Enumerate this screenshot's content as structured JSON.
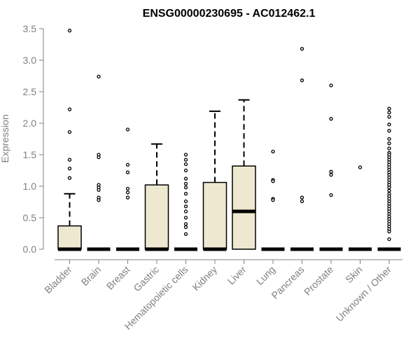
{
  "chart_data": {
    "type": "box",
    "title": "ENSG00000230695 - AC012462.1",
    "xlabel": "",
    "ylabel": "Expression",
    "ylim": [
      0,
      3.5
    ],
    "yticks": [
      0.0,
      0.5,
      1.0,
      1.5,
      2.0,
      2.5,
      3.0,
      3.5
    ],
    "ytick_labels": [
      "0.0",
      "0.5",
      "1.0",
      "1.5",
      "2.0",
      "2.5",
      "3.0",
      "3.5"
    ],
    "box_fill": "#ede8cf",
    "categories": [
      "Bladder",
      "Brain",
      "Breast",
      "Gastric",
      "Hematopoietic cells",
      "Kidney",
      "Liver",
      "Lung",
      "Pancreas",
      "Prostate",
      "Skin",
      "Unknown / Other"
    ],
    "boxes": [
      {
        "category": "Bladder",
        "min": 0,
        "q1": 0,
        "median": 0,
        "q3": 0.37,
        "max": 0.88,
        "outliers": [
          3.47,
          2.22,
          1.86,
          1.42,
          1.28,
          1.13
        ]
      },
      {
        "category": "Brain",
        "min": 0,
        "q1": 0,
        "median": 0,
        "q3": 0,
        "max": 0,
        "outliers": [
          2.74,
          1.5,
          1.46,
          1.02,
          0.98,
          0.94,
          0.82,
          0.78
        ]
      },
      {
        "category": "Breast",
        "min": 0,
        "q1": 0,
        "median": 0,
        "q3": 0,
        "max": 0,
        "outliers": [
          1.9,
          1.34,
          1.22,
          0.96,
          0.9,
          0.82
        ]
      },
      {
        "category": "Gastric",
        "min": 0,
        "q1": 0,
        "median": 0,
        "q3": 1.02,
        "max": 1.67,
        "outliers": []
      },
      {
        "category": "Hematopoietic cells",
        "min": 0,
        "q1": 0,
        "median": 0,
        "q3": 0,
        "max": 0,
        "outliers": [
          1.5,
          1.42,
          1.35,
          1.25,
          1.12,
          1.04,
          0.98,
          0.88,
          0.76,
          0.68,
          0.6,
          0.5,
          0.4,
          0.35,
          0.24
        ]
      },
      {
        "category": "Kidney",
        "min": 0,
        "q1": 0,
        "median": 0,
        "q3": 1.06,
        "max": 2.19,
        "outliers": []
      },
      {
        "category": "Liver",
        "min": 0,
        "q1": 0,
        "median": 0.6,
        "q3": 1.32,
        "max": 2.37,
        "outliers": []
      },
      {
        "category": "Lung",
        "min": 0,
        "q1": 0,
        "median": 0,
        "q3": 0,
        "max": 0,
        "outliers": [
          1.55,
          1.1,
          1.08,
          0.8,
          0.78
        ]
      },
      {
        "category": "Pancreas",
        "min": 0,
        "q1": 0,
        "median": 0,
        "q3": 0,
        "max": 0,
        "outliers": [
          3.18,
          2.68,
          0.82,
          0.76
        ]
      },
      {
        "category": "Prostate",
        "min": 0,
        "q1": 0,
        "median": 0,
        "q3": 0,
        "max": 0,
        "outliers": [
          2.6,
          2.07,
          1.23,
          1.18,
          0.86
        ]
      },
      {
        "category": "Skin",
        "min": 0,
        "q1": 0,
        "median": 0,
        "q3": 0,
        "max": 0,
        "outliers": [
          1.3
        ]
      },
      {
        "category": "Unknown / Other",
        "min": 0,
        "q1": 0,
        "median": 0,
        "q3": 0,
        "max": 0,
        "outliers": [
          2.23,
          2.17,
          2.1,
          1.98,
          1.88,
          1.75,
          1.68,
          1.6,
          1.53,
          1.5,
          1.46,
          1.42,
          1.38,
          1.34,
          1.3,
          1.26,
          1.22,
          1.18,
          1.14,
          1.1,
          1.06,
          1.02,
          0.98,
          0.93,
          0.88,
          0.84,
          0.8,
          0.76,
          0.72,
          0.68,
          0.64,
          0.6,
          0.56,
          0.52,
          0.48,
          0.44,
          0.4,
          0.36,
          0.32,
          0.28,
          0.16
        ]
      }
    ]
  }
}
